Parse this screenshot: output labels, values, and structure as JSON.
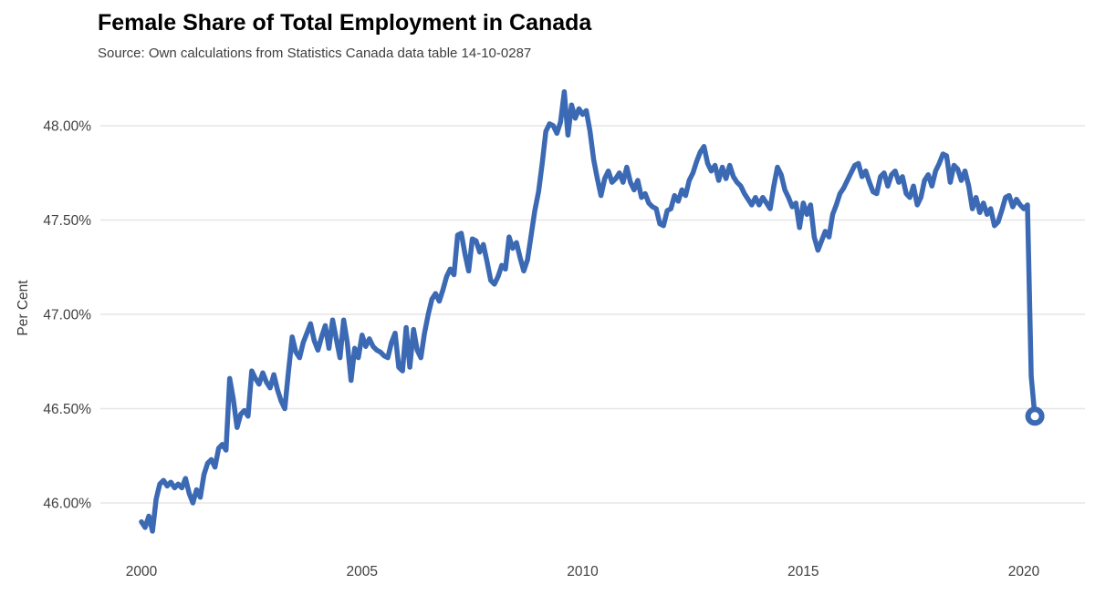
{
  "header": {
    "title": "Female Share of Total Employment in Canada",
    "subtitle": "Source: Own calculations from Statistics Canada data table 14-10-0287"
  },
  "chart_data": {
    "type": "line",
    "title": "Female Share of Total Employment in Canada",
    "source_note": "Source: Own calculations from Statistics Canada data table 14-10-0287",
    "xlabel": "",
    "ylabel": "Per Cent",
    "grid": "horizontal-only",
    "legend": "none",
    "line_color": "#3B69B3",
    "grid_color": "#E6E6E6",
    "axis_text_color": "#404040",
    "title_color": "#000000",
    "end_marker": "open-circle",
    "x_ticks": [
      2000,
      2005,
      2010,
      2015,
      2020
    ],
    "x_tick_labels": [
      "2000",
      "2005",
      "2010",
      "2015",
      "2020"
    ],
    "y_ticks": [
      48.0,
      47.5,
      47.0,
      46.5,
      46.0
    ],
    "y_tick_labels": [
      "48.00%",
      "47.50%",
      "47.00%",
      "46.50%",
      "46.00%"
    ],
    "ylim": [
      45.73,
      48.26
    ],
    "xlim": [
      1999.9,
      2021.4
    ],
    "series": [
      {
        "name": "Female share of total employment",
        "unit": "percent",
        "frequency": "monthly",
        "start": "2000-01",
        "start_year": 2000,
        "end": "2020-04",
        "values": [
          45.9,
          45.87,
          45.93,
          45.85,
          46.02,
          46.1,
          46.12,
          46.09,
          46.11,
          46.08,
          46.1,
          46.08,
          46.13,
          46.05,
          46.0,
          46.07,
          46.03,
          46.15,
          46.21,
          46.23,
          46.19,
          46.29,
          46.31,
          46.28,
          46.66,
          46.55,
          46.4,
          46.47,
          46.49,
          46.46,
          46.7,
          46.66,
          46.63,
          46.69,
          46.64,
          46.61,
          46.68,
          46.6,
          46.54,
          46.5,
          46.7,
          46.88,
          46.8,
          46.77,
          46.85,
          46.9,
          46.95,
          46.86,
          46.81,
          46.88,
          46.94,
          46.82,
          46.97,
          46.87,
          46.77,
          46.97,
          46.85,
          46.65,
          46.82,
          46.77,
          46.89,
          46.83,
          46.87,
          46.83,
          46.81,
          46.8,
          46.78,
          46.77,
          46.85,
          46.9,
          46.72,
          46.7,
          46.93,
          46.72,
          46.92,
          46.81,
          46.77,
          46.9,
          47.0,
          47.08,
          47.11,
          47.07,
          47.13,
          47.2,
          47.24,
          47.21,
          47.42,
          47.43,
          47.32,
          47.23,
          47.4,
          47.39,
          47.33,
          47.37,
          47.28,
          47.18,
          47.16,
          47.2,
          47.26,
          47.24,
          47.41,
          47.35,
          47.38,
          47.3,
          47.23,
          47.29,
          47.42,
          47.55,
          47.65,
          47.8,
          47.97,
          48.01,
          48.0,
          47.96,
          48.02,
          48.18,
          47.95,
          48.11,
          48.04,
          48.09,
          48.06,
          48.08,
          47.97,
          47.82,
          47.72,
          47.63,
          47.72,
          47.76,
          47.7,
          47.72,
          47.75,
          47.7,
          47.78,
          47.7,
          47.66,
          47.71,
          47.62,
          47.64,
          47.59,
          47.57,
          47.56,
          47.48,
          47.47,
          47.55,
          47.56,
          47.63,
          47.6,
          47.66,
          47.63,
          47.71,
          47.75,
          47.81,
          47.86,
          47.89,
          47.8,
          47.76,
          47.79,
          47.71,
          47.78,
          47.72,
          47.79,
          47.73,
          47.7,
          47.68,
          47.64,
          47.61,
          47.58,
          47.62,
          47.58,
          47.62,
          47.59,
          47.56,
          47.68,
          47.78,
          47.74,
          47.66,
          47.62,
          47.57,
          47.59,
          47.46,
          47.59,
          47.53,
          47.58,
          47.41,
          47.34,
          47.39,
          47.44,
          47.41,
          47.53,
          47.58,
          47.64,
          47.67,
          47.71,
          47.75,
          47.79,
          47.8,
          47.73,
          47.76,
          47.7,
          47.65,
          47.64,
          47.73,
          47.75,
          47.68,
          47.74,
          47.76,
          47.7,
          47.73,
          47.64,
          47.62,
          47.68,
          47.58,
          47.62,
          47.71,
          47.74,
          47.68,
          47.76,
          47.8,
          47.85,
          47.84,
          47.7,
          47.79,
          47.77,
          47.71,
          47.76,
          47.68,
          47.56,
          47.62,
          47.54,
          47.59,
          47.53,
          47.56,
          47.47,
          47.49,
          47.55,
          47.62,
          47.63,
          47.57,
          47.61,
          47.58,
          47.56,
          47.58,
          46.67,
          46.46
        ]
      }
    ]
  }
}
